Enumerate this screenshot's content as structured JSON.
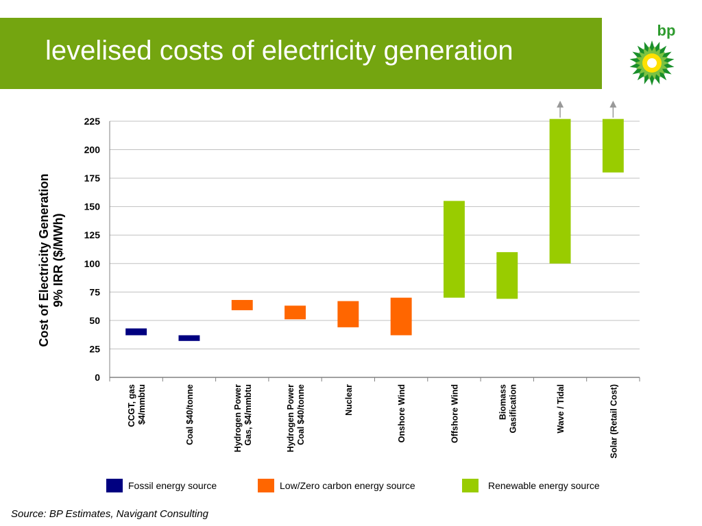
{
  "title": "levelised costs of electricity generation",
  "logo": {
    "icon": "bp-helios-logo",
    "text": "bp"
  },
  "source": "Source: BP Estimates, Navigant Consulting",
  "chart_data": {
    "type": "bar",
    "subtype": "floating-range",
    "ylabel_lines": [
      "Cost of Electricity Generation",
      "9% IRR ($/MWh)"
    ],
    "ylim": [
      0,
      225
    ],
    "yticks": [
      0,
      25,
      50,
      75,
      100,
      125,
      150,
      175,
      200,
      225
    ],
    "grid": true,
    "legend_position": "bottom",
    "categories": [
      {
        "label": [
          "CCGT, gas",
          "$4/mmbtu"
        ],
        "low": 37,
        "high": 43,
        "group": "fossil"
      },
      {
        "label": [
          "Coal $40/tonne"
        ],
        "low": 32,
        "high": 37,
        "group": "fossil"
      },
      {
        "label": [
          "Hydrogen Power",
          "Gas, $4/mmbtu"
        ],
        "low": 59,
        "high": 68,
        "group": "lowcarbon"
      },
      {
        "label": [
          "Hydrogen Power",
          "Coal $40/tonne"
        ],
        "low": 51,
        "high": 63,
        "group": "lowcarbon"
      },
      {
        "label": [
          "Nuclear"
        ],
        "low": 44,
        "high": 67,
        "group": "lowcarbon"
      },
      {
        "label": [
          "Onshore Wind"
        ],
        "low": 37,
        "high": 70,
        "group": "lowcarbon"
      },
      {
        "label": [
          "Offshore Wind"
        ],
        "low": 70,
        "high": 155,
        "group": "renewable"
      },
      {
        "label": [
          "Biomass",
          "Gasification"
        ],
        "low": 69,
        "high": 110,
        "group": "renewable"
      },
      {
        "label": [
          "Wave / Tidal"
        ],
        "low": 100,
        "high": 227,
        "group": "renewable",
        "extends_above": true
      },
      {
        "label": [
          "Solar (Retail Cost)"
        ],
        "low": 180,
        "high": 227,
        "group": "renewable",
        "extends_above": true
      }
    ],
    "legend": [
      {
        "key": "fossil",
        "label": "Fossil energy source",
        "color": "#000080"
      },
      {
        "key": "lowcarbon",
        "label": "Low/Zero carbon energy source",
        "color": "#ff6600"
      },
      {
        "key": "renewable",
        "label": "Renewable energy source",
        "color": "#99cc00"
      }
    ]
  }
}
